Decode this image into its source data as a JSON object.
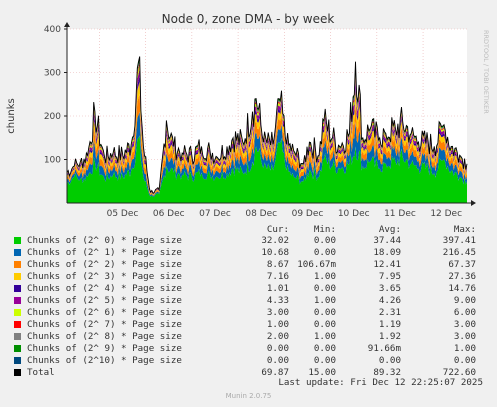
{
  "chart_data": {
    "type": "area",
    "title": "Node 0, zone DMA - by week",
    "ylabel": "chunks",
    "side_label": "RRDTOOL / TOBI OETIKER",
    "ylim": [
      0,
      400
    ],
    "yticks": [
      100,
      200,
      300,
      400
    ],
    "ytick_labels": [
      "100",
      "200",
      "300",
      "400"
    ],
    "xticks": [
      "05 Dec",
      "06 Dec",
      "07 Dec",
      "08 Dec",
      "09 Dec",
      "10 Dec",
      "11 Dec",
      "12 Dec"
    ],
    "x_day_start": 4.3,
    "x_day_end": 12.95,
    "grid": true,
    "stack_profile": [
      [
        4.3,
        45,
        70
      ],
      [
        4.45,
        60,
        85
      ],
      [
        4.6,
        55,
        95
      ],
      [
        4.75,
        60,
        110
      ],
      [
        4.9,
        95,
        210
      ],
      [
        5.1,
        55,
        105
      ],
      [
        5.3,
        65,
        115
      ],
      [
        5.5,
        60,
        110
      ],
      [
        5.7,
        75,
        135
      ],
      [
        5.85,
        150,
        325
      ],
      [
        5.95,
        60,
        130
      ],
      [
        6.1,
        15,
        25
      ],
      [
        6.3,
        20,
        30
      ],
      [
        6.45,
        85,
        190
      ],
      [
        6.6,
        70,
        130
      ],
      [
        6.8,
        65,
        115
      ],
      [
        7.0,
        60,
        110
      ],
      [
        7.2,
        70,
        130
      ],
      [
        7.4,
        65,
        120
      ],
      [
        7.55,
        60,
        105
      ],
      [
        7.75,
        70,
        130
      ],
      [
        7.9,
        80,
        150
      ],
      [
        8.1,
        70,
        140
      ],
      [
        8.3,
        95,
        210
      ],
      [
        8.4,
        130,
        240
      ],
      [
        8.55,
        80,
        140
      ],
      [
        8.75,
        75,
        135
      ],
      [
        8.9,
        140,
        240
      ],
      [
        9.05,
        75,
        135
      ],
      [
        9.2,
        60,
        120
      ],
      [
        9.4,
        50,
        90
      ],
      [
        9.55,
        75,
        140
      ],
      [
        9.75,
        60,
        110
      ],
      [
        9.85,
        100,
        190
      ],
      [
        10.05,
        85,
        150
      ],
      [
        10.2,
        80,
        130
      ],
      [
        10.4,
        90,
        160
      ],
      [
        10.55,
        130,
        325
      ],
      [
        10.7,
        85,
        150
      ],
      [
        10.85,
        95,
        170
      ],
      [
        11.05,
        80,
        150
      ],
      [
        11.2,
        90,
        160
      ],
      [
        11.4,
        95,
        170
      ],
      [
        11.55,
        105,
        185
      ],
      [
        11.75,
        90,
        160
      ],
      [
        11.9,
        80,
        140
      ],
      [
        12.1,
        80,
        140
      ],
      [
        12.25,
        70,
        130
      ],
      [
        12.45,
        100,
        180
      ],
      [
        12.6,
        75,
        130
      ],
      [
        12.8,
        60,
        110
      ],
      [
        12.95,
        50,
        90
      ]
    ],
    "columns": [
      "Cur:",
      "Min:",
      "Avg:",
      "Max:"
    ],
    "series": [
      {
        "name": "Chunks of (2^ 0) * Page size",
        "color": "#00cc00",
        "share": 0.43,
        "cur": "32.02",
        "min": "0.00",
        "avg": "37.44",
        "max": "397.41"
      },
      {
        "name": "Chunks of (2^ 1) * Page size",
        "color": "#0066b3",
        "share": 0.17,
        "cur": "10.68",
        "min": "0.00",
        "avg": "18.09",
        "max": "216.45"
      },
      {
        "name": "Chunks of (2^ 2) * Page size",
        "color": "#ff8000",
        "share": 0.13,
        "cur": "8.67",
        "min": "106.67m",
        "avg": "12.41",
        "max": "67.37"
      },
      {
        "name": "Chunks of (2^ 3) * Page size",
        "color": "#ffcc00",
        "share": 0.09,
        "cur": "7.16",
        "min": "1.00",
        "avg": "7.95",
        "max": "27.36"
      },
      {
        "name": "Chunks of (2^ 4) * Page size",
        "color": "#330099",
        "share": 0.04,
        "cur": "1.01",
        "min": "0.00",
        "avg": "3.65",
        "max": "14.76"
      },
      {
        "name": "Chunks of (2^ 5) * Page size",
        "color": "#990099",
        "share": 0.05,
        "cur": "4.33",
        "min": "1.00",
        "avg": "4.26",
        "max": "9.00"
      },
      {
        "name": "Chunks of (2^ 6) * Page size",
        "color": "#ccff00",
        "share": 0.03,
        "cur": "3.00",
        "min": "0.00",
        "avg": "2.31",
        "max": "6.00"
      },
      {
        "name": "Chunks of (2^ 7) * Page size",
        "color": "#ff0000",
        "share": 0.015,
        "cur": "1.00",
        "min": "0.00",
        "avg": "1.19",
        "max": "3.00"
      },
      {
        "name": "Chunks of (2^ 8) * Page size",
        "color": "#808080",
        "share": 0.02,
        "cur": "2.00",
        "min": "1.00",
        "avg": "1.92",
        "max": "3.00"
      },
      {
        "name": "Chunks of (2^ 9) * Page size",
        "color": "#008f00",
        "share": 0.025,
        "cur": "0.00",
        "min": "0.00",
        "avg": "91.66m",
        "max": "1.00"
      },
      {
        "name": "Chunks of (2^10) * Page size",
        "color": "#00487d",
        "share": 0.0,
        "cur": "0.00",
        "min": "0.00",
        "avg": "0.00",
        "max": "0.00"
      },
      {
        "name": "Total",
        "color": "#000000",
        "share": 0.0,
        "cur": "69.87",
        "min": "15.00",
        "avg": "89.32",
        "max": "722.60"
      }
    ],
    "last_update": "Last update: Fri Dec 12 22:25:07 2025",
    "footer": "Munin 2.0.75"
  }
}
